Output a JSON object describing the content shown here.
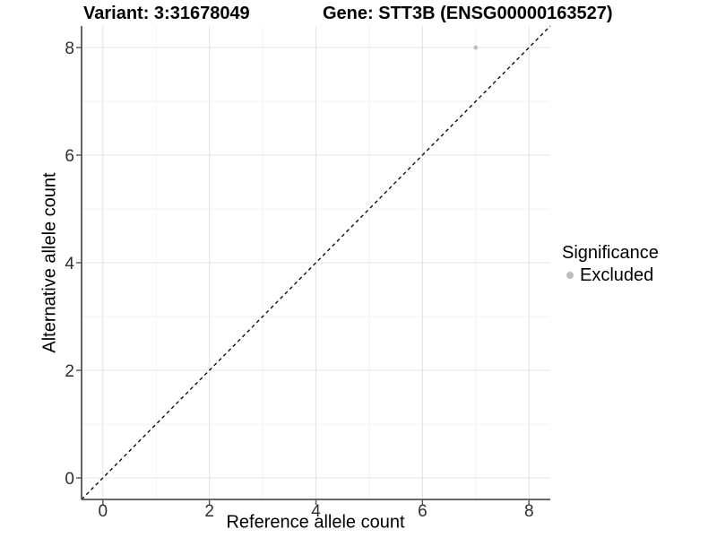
{
  "chart_data": {
    "type": "scatter",
    "titles": [
      "Variant: 3:31678049",
      "Gene: STT3B (ENSG00000163527)"
    ],
    "xlabel": "Reference allele count",
    "ylabel": "Alternative allele count",
    "xlim": [
      -0.4,
      8.4
    ],
    "ylim": [
      -0.4,
      8.4
    ],
    "xticks": [
      0,
      2,
      4,
      6,
      8
    ],
    "yticks": [
      0,
      2,
      4,
      6,
      8
    ],
    "minor_ticks": [
      1,
      3,
      5,
      7
    ],
    "grid": "on",
    "legend": {
      "title": "Significance",
      "position": "right",
      "items": [
        {
          "label": "Excluded",
          "color": "#bdbdbd"
        }
      ]
    },
    "series": [
      {
        "name": "Excluded",
        "color": "#bdbdbd",
        "points": [
          {
            "x": 7,
            "y": 8
          }
        ]
      }
    ],
    "identity_line": {
      "equation": "y = x",
      "style": "dashed",
      "color": "#000000"
    }
  },
  "style": {
    "axis_line_color": "#545454",
    "major_grid_color": "#e4e4e4",
    "minor_grid_color": "#f2f2f2",
    "tick_text_color": "#2e2e2e",
    "background_color": "#ffffff"
  }
}
